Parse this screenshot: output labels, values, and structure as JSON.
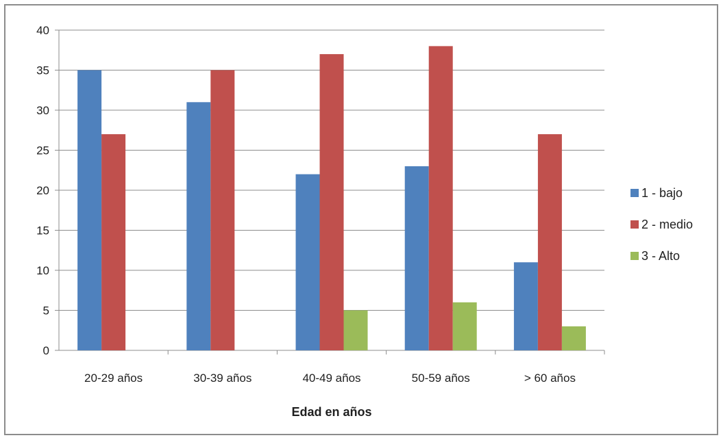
{
  "chart_data": {
    "type": "bar",
    "categories": [
      "20-29 años",
      "30-39 años",
      "40-49 años",
      "50-59 años",
      "> 60 años"
    ],
    "series": [
      {
        "name": "1 - bajo",
        "values": [
          35,
          31,
          22,
          23,
          11
        ],
        "color": "#4f81bd"
      },
      {
        "name": "2 - medio",
        "values": [
          27,
          35,
          37,
          38,
          27
        ],
        "color": "#c0504d"
      },
      {
        "name": "3 - Alto",
        "values": [
          0,
          0,
          5,
          6,
          3
        ],
        "color": "#9bbb59"
      }
    ],
    "title": "",
    "xlabel": "Edad en años",
    "ylabel": "",
    "ylim": [
      0,
      40
    ],
    "yticks": [
      0,
      5,
      10,
      15,
      20,
      25,
      30,
      35,
      40
    ],
    "grid": true,
    "legend_position": "right"
  }
}
